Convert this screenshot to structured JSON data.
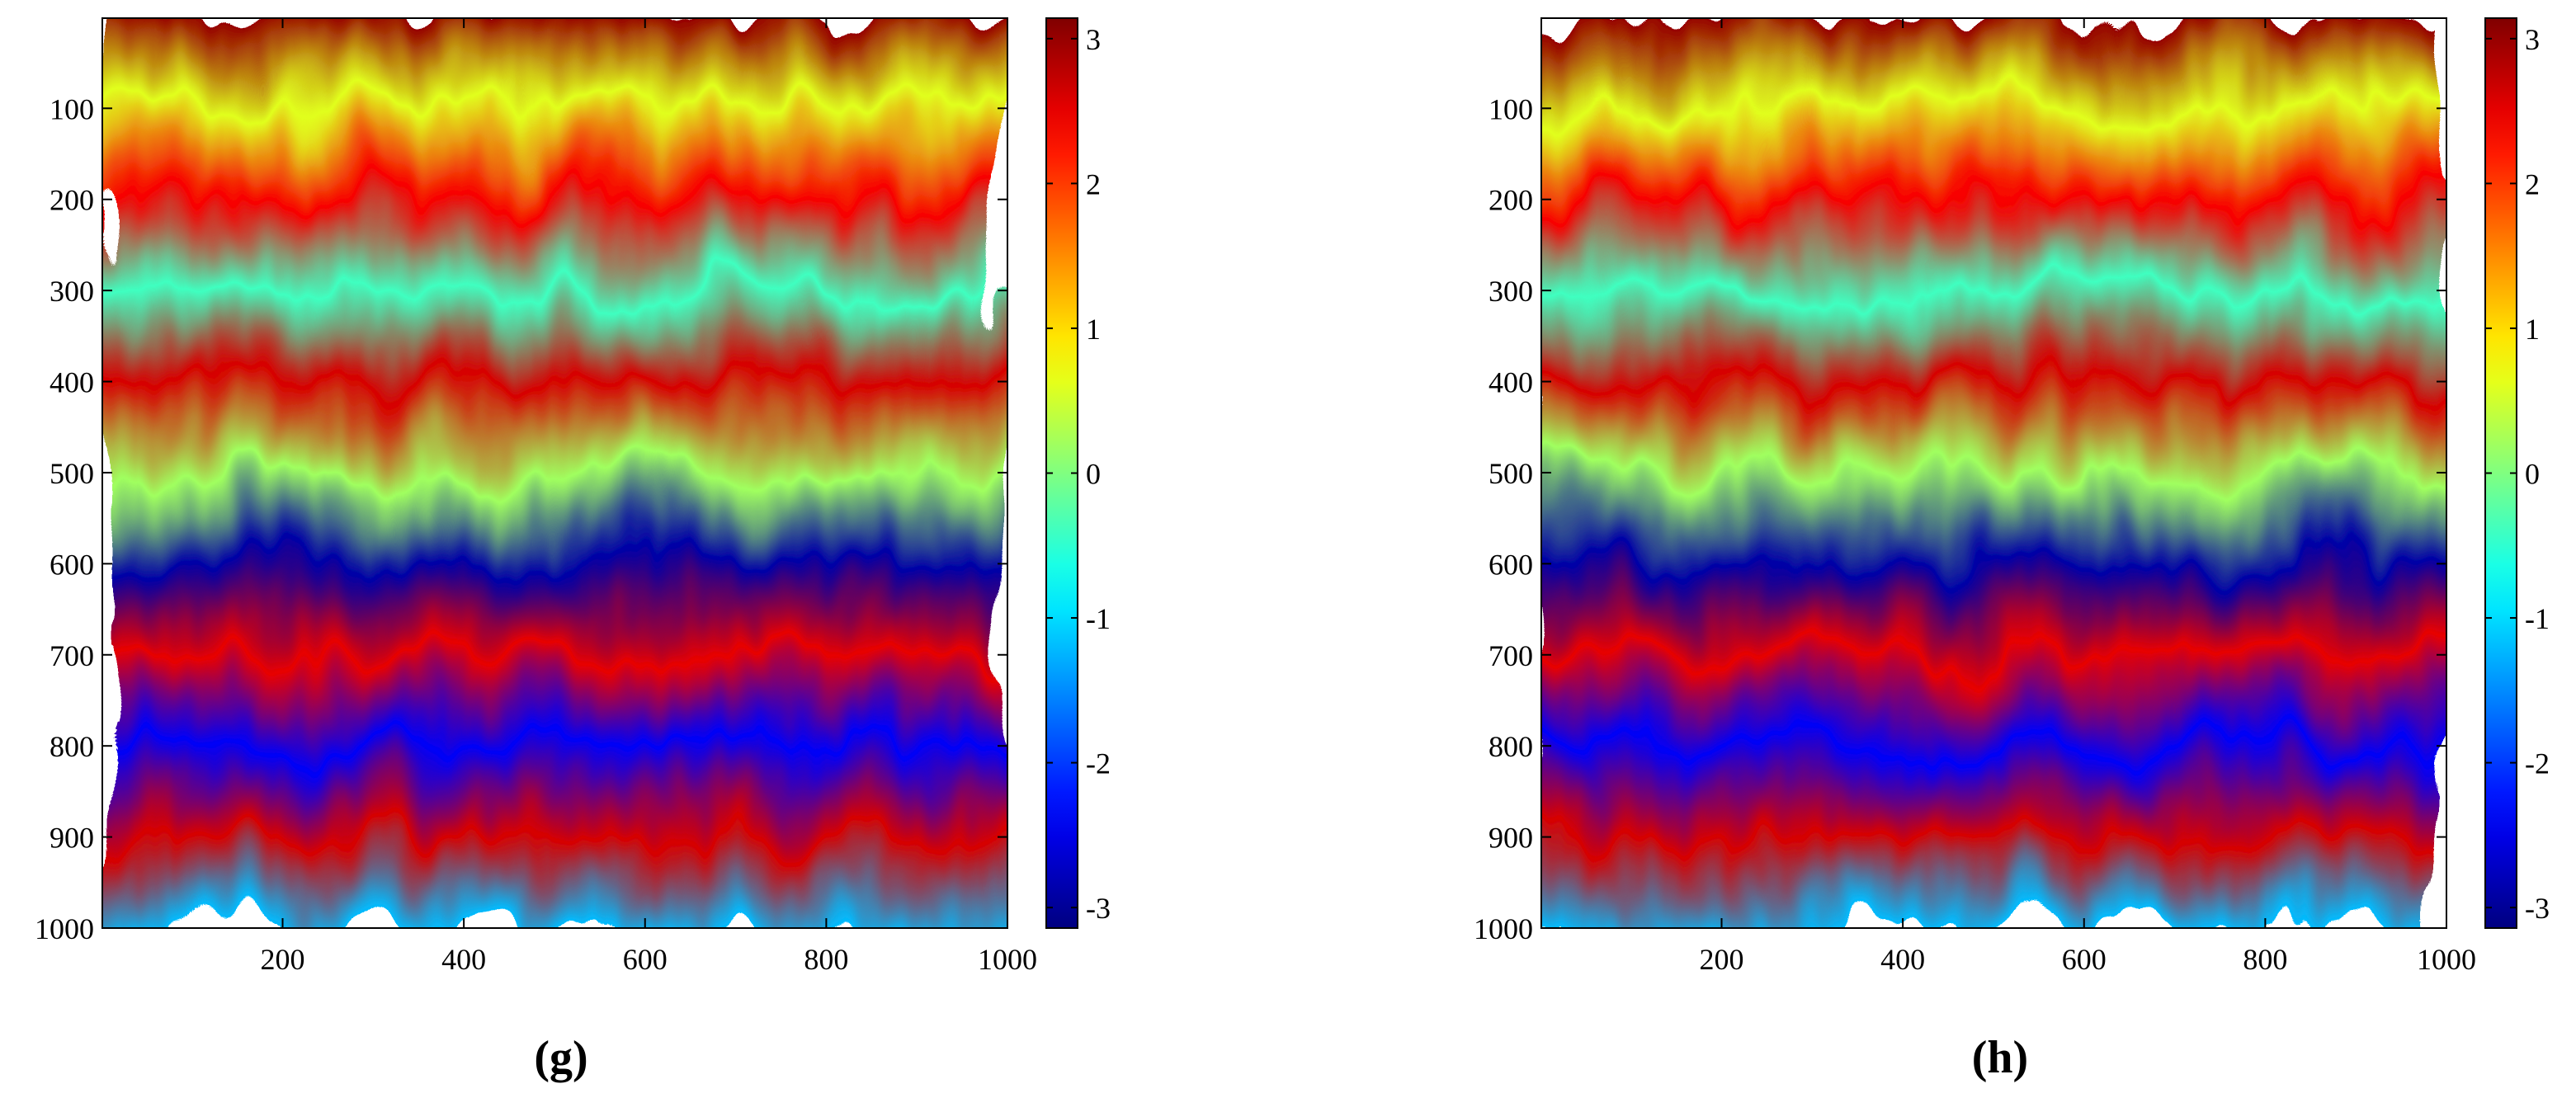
{
  "chart_data": [
    {
      "type": "heatmap",
      "panel_label": "(g)",
      "title": "",
      "xlabel": "",
      "ylabel": "",
      "xlim": [
        1,
        1000
      ],
      "ylim": [
        1,
        1000
      ],
      "y_reversed": true,
      "x_ticks": [
        200,
        400,
        600,
        800,
        1000
      ],
      "y_ticks": [
        100,
        200,
        300,
        400,
        500,
        600,
        700,
        800,
        900,
        1000
      ],
      "colorbar": {
        "colormap": "jet",
        "range": [
          -3.1416,
          3.1416
        ],
        "ticks": [
          -3,
          -2,
          -1,
          0,
          1,
          2,
          3
        ]
      },
      "fringe_profile": {
        "y": [
          0,
          100,
          200,
          300,
          400,
          500,
          600,
          700,
          800,
          900,
          1000
        ],
        "phase": [
          3.0,
          0.6,
          2.4,
          -0.4,
          2.6,
          0.2,
          -2.9,
          2.5,
          -2.4,
          2.6,
          -1.2
        ]
      }
    },
    {
      "type": "heatmap",
      "panel_label": "(h)",
      "title": "",
      "xlabel": "",
      "ylabel": "",
      "xlim": [
        1,
        1000
      ],
      "ylim": [
        1,
        1000
      ],
      "y_reversed": true,
      "x_ticks": [
        200,
        400,
        600,
        800,
        1000
      ],
      "y_ticks": [
        100,
        200,
        300,
        400,
        500,
        600,
        700,
        800,
        900,
        1000
      ],
      "colorbar": {
        "colormap": "jet",
        "range": [
          -3.1416,
          3.1416
        ],
        "ticks": [
          -3,
          -2,
          -1,
          0,
          1,
          2,
          3
        ]
      },
      "fringe_profile": {
        "y": [
          0,
          100,
          200,
          300,
          400,
          500,
          600,
          700,
          800,
          900,
          1000
        ],
        "phase": [
          3.0,
          0.6,
          2.4,
          -0.4,
          2.6,
          0.2,
          -2.9,
          2.5,
          -2.4,
          2.6,
          -1.2
        ]
      }
    }
  ]
}
